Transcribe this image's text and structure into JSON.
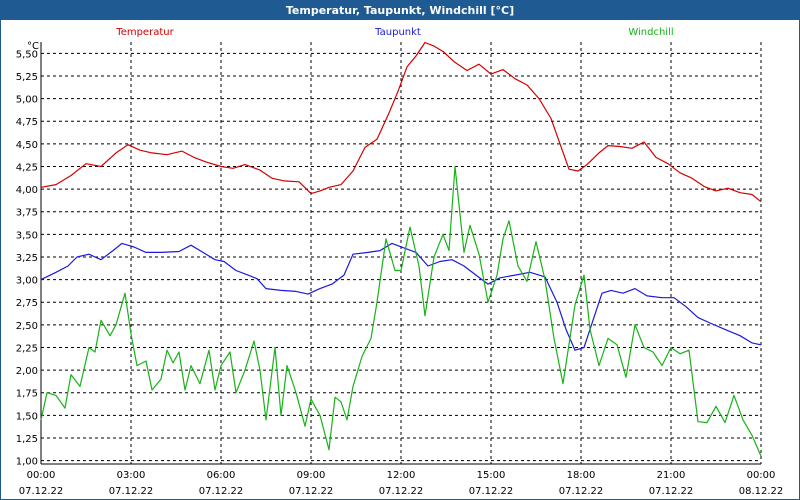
{
  "window": {
    "title": "Temperatur, Taupunkt, Windchill [°C]"
  },
  "chart_data": {
    "type": "line",
    "title": "Temperatur, Taupunkt, Windchill [°C]",
    "ylabel": "°C",
    "xlabel": "",
    "ylim": [
      0.95,
      5.75
    ],
    "xlim": [
      0,
      24
    ],
    "grid": true,
    "legend_position": "top",
    "y_ticks": [
      5.5,
      5.25,
      5.0,
      4.75,
      4.5,
      4.25,
      4.0,
      3.75,
      3.5,
      3.25,
      3.0,
      2.75,
      2.5,
      2.25,
      2.0,
      1.75,
      1.5,
      1.25,
      1.0
    ],
    "y_tick_labels": [
      "5,50",
      "5,25",
      "5,00",
      "4,75",
      "4,50",
      "4,25",
      "4,00",
      "3,75",
      "3,50",
      "3,25",
      "3,00",
      "2,75",
      "2,50",
      "2,25",
      "2,00",
      "1,75",
      "1,50",
      "1,25",
      "1,00"
    ],
    "x_ticks": [
      {
        "x": 0,
        "time": "00:00",
        "date": "07.12.22"
      },
      {
        "x": 3,
        "time": "03:00",
        "date": "07.12.22"
      },
      {
        "x": 6,
        "time": "06:00",
        "date": "07.12.22"
      },
      {
        "x": 9,
        "time": "09:00",
        "date": "07.12.22"
      },
      {
        "x": 12,
        "time": "12:00",
        "date": "07.12.22"
      },
      {
        "x": 15,
        "time": "15:00",
        "date": "07.12.22"
      },
      {
        "x": 18,
        "time": "18:00",
        "date": "07.12.22"
      },
      {
        "x": 21,
        "time": "21:00",
        "date": "07.12.22"
      },
      {
        "x": 24,
        "time": "00:00",
        "date": "08.12.22"
      }
    ],
    "series": [
      {
        "name": "Temperatur",
        "color": "#d40000",
        "points": [
          [
            0,
            4.02
          ],
          [
            0.5,
            4.05
          ],
          [
            1,
            4.15
          ],
          [
            1.5,
            4.28
          ],
          [
            2,
            4.25
          ],
          [
            2.5,
            4.4
          ],
          [
            2.9,
            4.49
          ],
          [
            3.3,
            4.43
          ],
          [
            3.7,
            4.4
          ],
          [
            4.2,
            4.38
          ],
          [
            4.7,
            4.42
          ],
          [
            5.1,
            4.35
          ],
          [
            5.5,
            4.3
          ],
          [
            6,
            4.25
          ],
          [
            6.4,
            4.23
          ],
          [
            6.8,
            4.27
          ],
          [
            7.3,
            4.21
          ],
          [
            7.7,
            4.12
          ],
          [
            8.1,
            4.09
          ],
          [
            8.6,
            4.08
          ],
          [
            9.0,
            3.95
          ],
          [
            9.3,
            3.98
          ],
          [
            9.6,
            4.02
          ],
          [
            10.0,
            4.05
          ],
          [
            10.4,
            4.2
          ],
          [
            10.8,
            4.46
          ],
          [
            11.2,
            4.55
          ],
          [
            11.6,
            4.84
          ],
          [
            11.9,
            5.08
          ],
          [
            12.2,
            5.35
          ],
          [
            12.5,
            5.47
          ],
          [
            12.8,
            5.62
          ],
          [
            13.1,
            5.58
          ],
          [
            13.4,
            5.52
          ],
          [
            13.8,
            5.4
          ],
          [
            14.2,
            5.31
          ],
          [
            14.6,
            5.38
          ],
          [
            15.0,
            5.27
          ],
          [
            15.4,
            5.32
          ],
          [
            15.8,
            5.22
          ],
          [
            16.2,
            5.15
          ],
          [
            16.6,
            5.0
          ],
          [
            17.0,
            4.78
          ],
          [
            17.3,
            4.5
          ],
          [
            17.6,
            4.22
          ],
          [
            17.9,
            4.2
          ],
          [
            18.2,
            4.27
          ],
          [
            18.6,
            4.4
          ],
          [
            18.9,
            4.48
          ],
          [
            19.3,
            4.47
          ],
          [
            19.7,
            4.45
          ],
          [
            20.1,
            4.52
          ],
          [
            20.5,
            4.35
          ],
          [
            20.9,
            4.28
          ],
          [
            21.3,
            4.18
          ],
          [
            21.7,
            4.12
          ],
          [
            22.1,
            4.03
          ],
          [
            22.5,
            3.98
          ],
          [
            22.9,
            4.01
          ],
          [
            23.3,
            3.96
          ],
          [
            23.7,
            3.94
          ],
          [
            24,
            3.86
          ]
        ]
      },
      {
        "name": "Taupunkt",
        "color": "#1a1adc",
        "points": [
          [
            0,
            3.0
          ],
          [
            0.5,
            3.08
          ],
          [
            0.9,
            3.15
          ],
          [
            1.2,
            3.25
          ],
          [
            1.6,
            3.28
          ],
          [
            2.0,
            3.22
          ],
          [
            2.4,
            3.32
          ],
          [
            2.7,
            3.4
          ],
          [
            3.1,
            3.36
          ],
          [
            3.5,
            3.3
          ],
          [
            4.0,
            3.3
          ],
          [
            4.6,
            3.31
          ],
          [
            5.0,
            3.38
          ],
          [
            5.4,
            3.3
          ],
          [
            5.8,
            3.22
          ],
          [
            6.1,
            3.2
          ],
          [
            6.5,
            3.1
          ],
          [
            6.9,
            3.05
          ],
          [
            7.2,
            3.01
          ],
          [
            7.5,
            2.9
          ],
          [
            8.0,
            2.88
          ],
          [
            8.5,
            2.87
          ],
          [
            8.9,
            2.84
          ],
          [
            9.3,
            2.9
          ],
          [
            9.7,
            2.95
          ],
          [
            10.1,
            3.05
          ],
          [
            10.4,
            3.28
          ],
          [
            10.9,
            3.3
          ],
          [
            11.3,
            3.32
          ],
          [
            11.7,
            3.4
          ],
          [
            12.1,
            3.35
          ],
          [
            12.5,
            3.3
          ],
          [
            12.9,
            3.15
          ],
          [
            13.3,
            3.2
          ],
          [
            13.7,
            3.22
          ],
          [
            14.1,
            3.15
          ],
          [
            14.5,
            3.05
          ],
          [
            14.9,
            2.95
          ],
          [
            15.3,
            3.02
          ],
          [
            15.8,
            3.05
          ],
          [
            16.3,
            3.08
          ],
          [
            16.8,
            3.03
          ],
          [
            17.2,
            2.75
          ],
          [
            17.5,
            2.45
          ],
          [
            17.8,
            2.22
          ],
          [
            18.1,
            2.25
          ],
          [
            18.4,
            2.55
          ],
          [
            18.7,
            2.85
          ],
          [
            19.0,
            2.88
          ],
          [
            19.4,
            2.85
          ],
          [
            19.8,
            2.9
          ],
          [
            20.2,
            2.82
          ],
          [
            20.7,
            2.8
          ],
          [
            21.1,
            2.8
          ],
          [
            21.5,
            2.7
          ],
          [
            21.9,
            2.58
          ],
          [
            22.3,
            2.52
          ],
          [
            22.8,
            2.45
          ],
          [
            23.3,
            2.38
          ],
          [
            23.7,
            2.3
          ],
          [
            24,
            2.28
          ]
        ]
      },
      {
        "name": "Windchill",
        "color": "#17b317",
        "points": [
          [
            0,
            1.45
          ],
          [
            0.2,
            1.75
          ],
          [
            0.5,
            1.72
          ],
          [
            0.8,
            1.58
          ],
          [
            1.0,
            1.95
          ],
          [
            1.3,
            1.82
          ],
          [
            1.6,
            2.25
          ],
          [
            1.8,
            2.2
          ],
          [
            2.0,
            2.55
          ],
          [
            2.3,
            2.38
          ],
          [
            2.5,
            2.5
          ],
          [
            2.8,
            2.85
          ],
          [
            3.0,
            2.4
          ],
          [
            3.2,
            2.05
          ],
          [
            3.5,
            2.1
          ],
          [
            3.7,
            1.78
          ],
          [
            4.0,
            1.9
          ],
          [
            4.2,
            2.22
          ],
          [
            4.4,
            2.08
          ],
          [
            4.6,
            2.2
          ],
          [
            4.8,
            1.78
          ],
          [
            5.0,
            2.05
          ],
          [
            5.3,
            1.85
          ],
          [
            5.6,
            2.22
          ],
          [
            5.8,
            1.78
          ],
          [
            6.0,
            2.05
          ],
          [
            6.3,
            2.2
          ],
          [
            6.5,
            1.75
          ],
          [
            6.8,
            2.0
          ],
          [
            7.1,
            2.32
          ],
          [
            7.3,
            2.0
          ],
          [
            7.5,
            1.45
          ],
          [
            7.8,
            2.25
          ],
          [
            8.0,
            1.5
          ],
          [
            8.2,
            2.05
          ],
          [
            8.5,
            1.75
          ],
          [
            8.8,
            1.38
          ],
          [
            9.0,
            1.68
          ],
          [
            9.3,
            1.5
          ],
          [
            9.6,
            1.12
          ],
          [
            9.8,
            1.7
          ],
          [
            10.0,
            1.65
          ],
          [
            10.2,
            1.45
          ],
          [
            10.4,
            1.82
          ],
          [
            10.7,
            2.15
          ],
          [
            11.0,
            2.35
          ],
          [
            11.2,
            2.75
          ],
          [
            11.5,
            3.45
          ],
          [
            11.8,
            3.1
          ],
          [
            12.0,
            3.1
          ],
          [
            12.3,
            3.58
          ],
          [
            12.6,
            3.15
          ],
          [
            12.8,
            2.6
          ],
          [
            13.1,
            3.25
          ],
          [
            13.4,
            3.5
          ],
          [
            13.6,
            3.32
          ],
          [
            13.8,
            4.25
          ],
          [
            14.1,
            3.3
          ],
          [
            14.3,
            3.6
          ],
          [
            14.6,
            3.28
          ],
          [
            14.9,
            2.75
          ],
          [
            15.2,
            3.05
          ],
          [
            15.4,
            3.45
          ],
          [
            15.6,
            3.65
          ],
          [
            15.9,
            3.15
          ],
          [
            16.2,
            2.98
          ],
          [
            16.5,
            3.42
          ],
          [
            16.8,
            3.0
          ],
          [
            17.1,
            2.35
          ],
          [
            17.4,
            1.85
          ],
          [
            17.8,
            2.72
          ],
          [
            18.1,
            3.05
          ],
          [
            18.3,
            2.45
          ],
          [
            18.6,
            2.05
          ],
          [
            18.9,
            2.35
          ],
          [
            19.2,
            2.28
          ],
          [
            19.5,
            1.92
          ],
          [
            19.8,
            2.5
          ],
          [
            20.1,
            2.25
          ],
          [
            20.4,
            2.2
          ],
          [
            20.7,
            2.05
          ],
          [
            21.0,
            2.25
          ],
          [
            21.3,
            2.18
          ],
          [
            21.6,
            2.22
          ],
          [
            21.9,
            1.43
          ],
          [
            22.2,
            1.42
          ],
          [
            22.5,
            1.6
          ],
          [
            22.8,
            1.42
          ],
          [
            23.1,
            1.72
          ],
          [
            23.4,
            1.45
          ],
          [
            23.7,
            1.28
          ],
          [
            24,
            1.05
          ]
        ]
      }
    ]
  }
}
